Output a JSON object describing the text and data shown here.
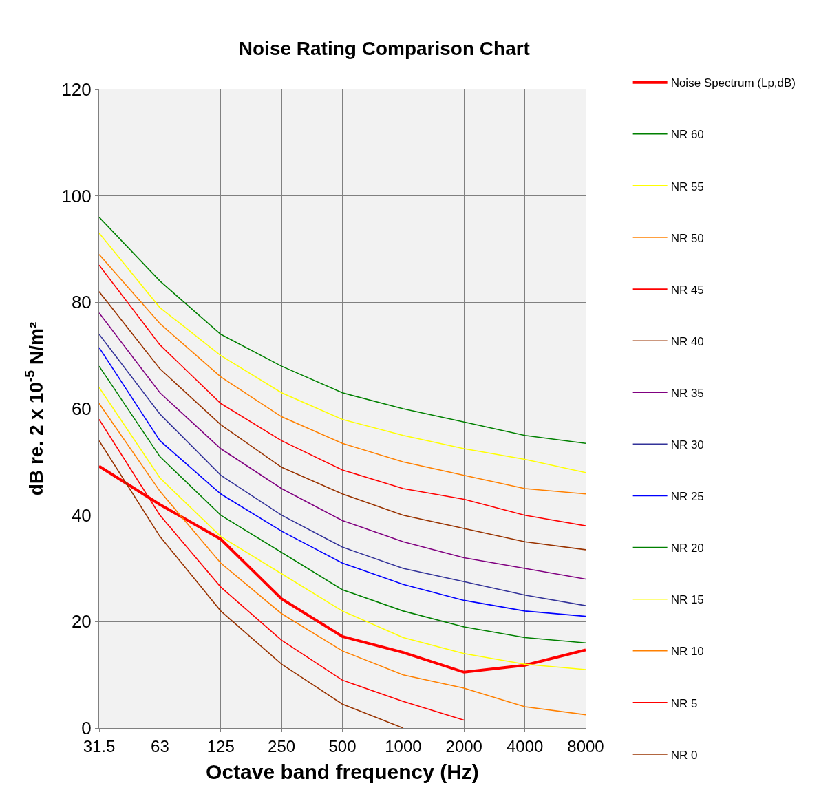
{
  "chart_data": {
    "type": "line",
    "title": "Noise Rating Comparison Chart",
    "xlabel": "Octave band frequency (Hz)",
    "ylabel": "dB re. 2 x 10$^{-5}$ N/m²",
    "categories": [
      "31.5",
      "63",
      "125",
      "250",
      "500",
      "1000",
      "2000",
      "4000",
      "8000"
    ],
    "ylim": [
      0,
      120
    ],
    "yticks": [
      0,
      20,
      40,
      60,
      80,
      100,
      120
    ],
    "grid": true,
    "legend": "right",
    "marker": "none",
    "line_style": "solid",
    "series": [
      {
        "name": "Noise Spectrum (Lp,dB)",
        "color": "#ff0000",
        "values": [
          49.2,
          42,
          35.5,
          24.3,
          17.2,
          14.2,
          10.5,
          11.8,
          14.7
        ]
      },
      {
        "name": "NR 60",
        "color": "#008000",
        "values": [
          96,
          84,
          74,
          68,
          63,
          60,
          57.5,
          55,
          53.5
        ]
      },
      {
        "name": "NR 55",
        "color": "#ffff00",
        "values": [
          93,
          79,
          70,
          63,
          58,
          55,
          52.5,
          50.5,
          48
        ]
      },
      {
        "name": "NR 50",
        "color": "#ff8000",
        "values": [
          89,
          76,
          66,
          58.5,
          53.5,
          50,
          47.5,
          45,
          44
        ]
      },
      {
        "name": "NR 45",
        "color": "#ff0000",
        "values": [
          87,
          72,
          61,
          54,
          48.5,
          45,
          43,
          40,
          38
        ]
      },
      {
        "name": "NR 40",
        "color": "#993300",
        "values": [
          82,
          67.5,
          57,
          49,
          44,
          40,
          37.5,
          35,
          33.5
        ]
      },
      {
        "name": "NR 35",
        "color": "#800080",
        "values": [
          78,
          63,
          52.5,
          45,
          39,
          35,
          32,
          30,
          28
        ]
      },
      {
        "name": "NR 30",
        "color": "#333399",
        "values": [
          74,
          59,
          47.5,
          40,
          34,
          30,
          27.5,
          25,
          23
        ]
      },
      {
        "name": "NR 25",
        "color": "#0000ff",
        "values": [
          71.5,
          54,
          44,
          37,
          31,
          27,
          24,
          22,
          21
        ]
      },
      {
        "name": "NR 20",
        "color": "#008000",
        "values": [
          68,
          51,
          40,
          33,
          26,
          22,
          19,
          17,
          16
        ]
      },
      {
        "name": "NR 15",
        "color": "#ffff00",
        "values": [
          64,
          47,
          36,
          29,
          22,
          17,
          14,
          12,
          11
        ]
      },
      {
        "name": "NR 10",
        "color": "#ff8000",
        "values": [
          61,
          44.5,
          31,
          21.5,
          14.5,
          10,
          7.5,
          4,
          2.5
        ]
      },
      {
        "name": "NR 5",
        "color": "#ff0000",
        "values": [
          58,
          40,
          26.5,
          16.5,
          9,
          5,
          1.5,
          null,
          null
        ]
      },
      {
        "name": "NR 0",
        "color": "#993300",
        "values": [
          54,
          36,
          22,
          12,
          4.5,
          0,
          null,
          null,
          null
        ]
      }
    ]
  }
}
